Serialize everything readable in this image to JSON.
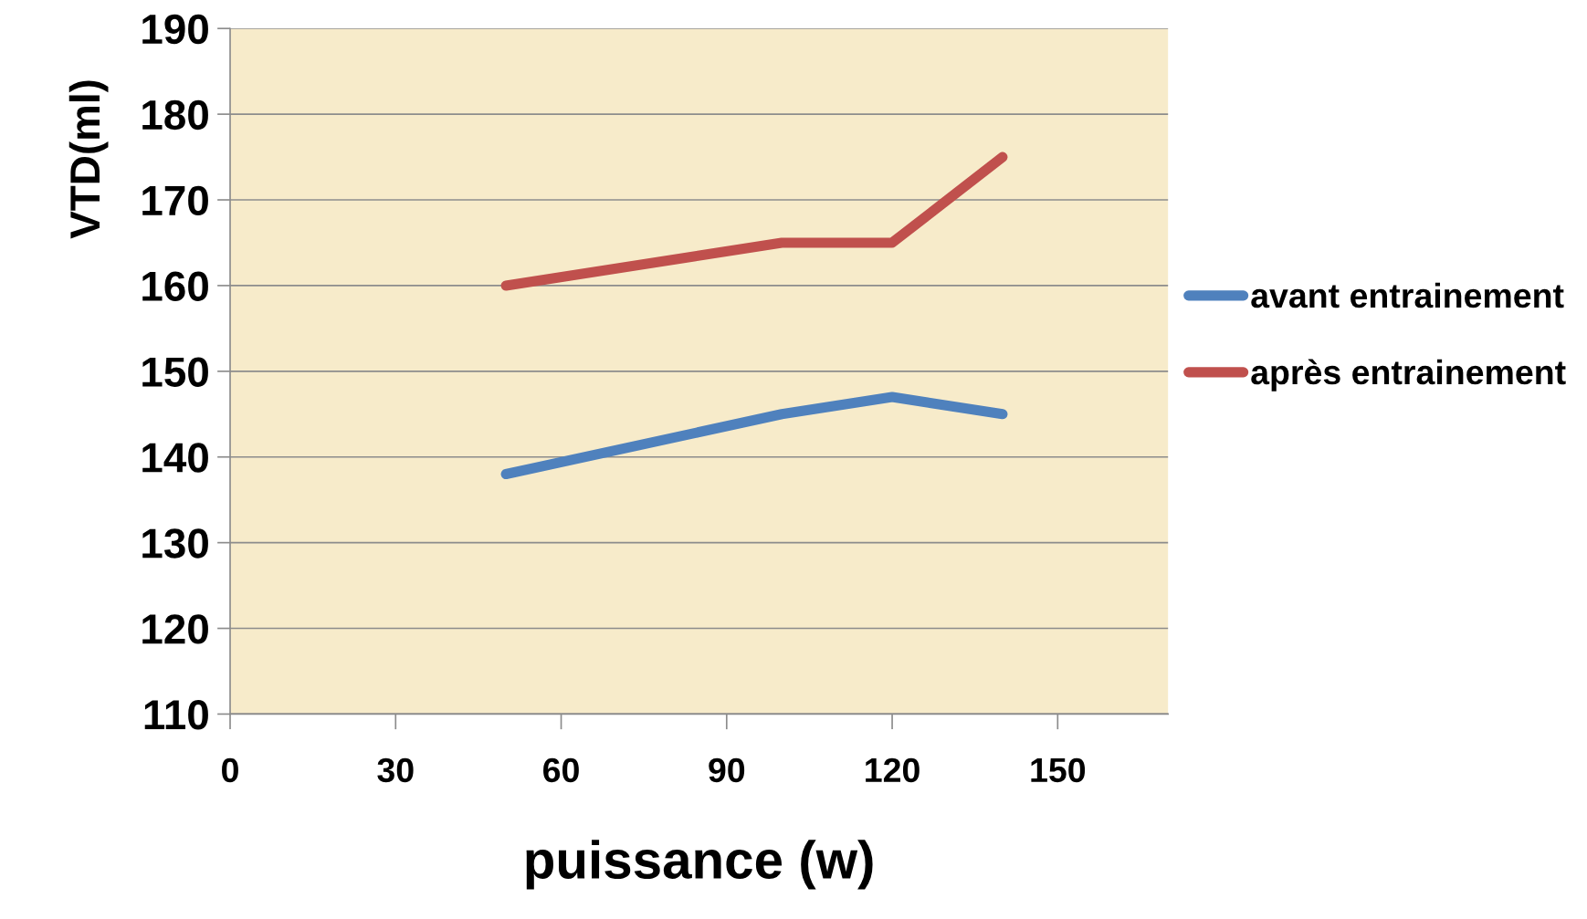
{
  "chart_data": {
    "type": "line",
    "xlabel": "puissance (w)",
    "ylabel": "VTD(ml)",
    "series": [
      {
        "name": "avant entrainement",
        "color": "#4f81bd",
        "x": [
          50,
          100,
          120,
          140
        ],
        "values": [
          138,
          145,
          147,
          145
        ]
      },
      {
        "name": "après entrainement",
        "color": "#c0504d",
        "x": [
          50,
          100,
          120,
          140
        ],
        "values": [
          160,
          165,
          165,
          175
        ]
      }
    ],
    "xlim": [
      0,
      170
    ],
    "xticks": [
      0,
      30,
      60,
      90,
      120,
      150
    ],
    "ylim": [
      110,
      190
    ],
    "yticks": [
      110,
      120,
      130,
      140,
      150,
      160,
      170,
      180,
      190
    ],
    "grid": "y",
    "legend": "right",
    "line_style": "solid"
  }
}
